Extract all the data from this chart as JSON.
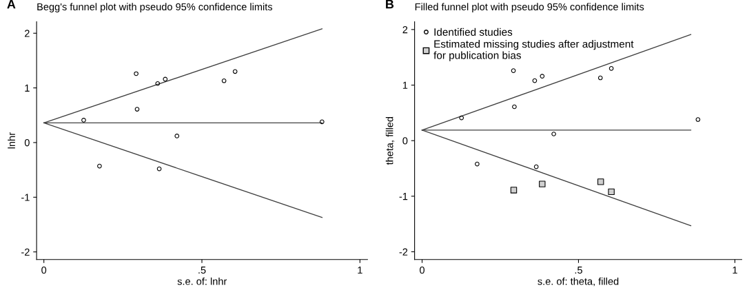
{
  "chart_data": [
    {
      "type": "scatter",
      "title": "Begg's funnel plot with pseudo 95% confidence limits",
      "xlabel": "s.e. of: lnhr",
      "ylabel": "lnhr",
      "annotations": [
        "A"
      ],
      "xlim": [
        -0.023,
        1.024
      ],
      "ylim": [
        -2.14,
        2.21
      ],
      "xticks": [
        0,
        {
          "value": 0.5,
          "label": ".5"
        },
        1
      ],
      "yticks": [
        -2,
        -1,
        0,
        1,
        2
      ],
      "grid": false,
      "legend": false,
      "series": [
        {
          "type": "line",
          "x": [
            0,
            0.88
          ],
          "values": [
            0.36,
            2.08
          ],
          "color": "#404040",
          "marker": "none"
        },
        {
          "type": "line",
          "x": [
            0,
            0.88
          ],
          "values": [
            0.36,
            0.36
          ],
          "color": "#404040",
          "marker": "none"
        },
        {
          "type": "line",
          "x": [
            0,
            0.88
          ],
          "values": [
            0.36,
            -1.37
          ],
          "color": "#404040",
          "marker": "none"
        },
        {
          "x": [
            0.126,
            0.176,
            0.292,
            0.295,
            0.36,
            0.365,
            0.384,
            0.421,
            0.57,
            0.605,
            0.88
          ],
          "values": [
            0.41,
            -0.43,
            1.26,
            0.61,
            1.08,
            -0.48,
            1.16,
            0.12,
            1.13,
            1.3,
            0.38
          ],
          "color": "#000000",
          "marker": "circle"
        }
      ]
    },
    {
      "type": "scatter",
      "title": "Filled funnel plot with pseudo 95% confidence limits",
      "xlabel": "s.e. of: theta, filled",
      "ylabel": "theta, filled",
      "annotations": [
        "B"
      ],
      "xlim": [
        -0.024,
        1.022
      ],
      "ylim": [
        -2.14,
        2.14
      ],
      "xticks": [
        0,
        {
          "value": 0.5,
          "label": ".5"
        },
        1
      ],
      "yticks": [
        -2,
        -1,
        0,
        1,
        2
      ],
      "grid": false,
      "legend": "top left",
      "series": [
        {
          "type": "line",
          "x": [
            0,
            0.859
          ],
          "values": [
            0.19,
            1.91
          ],
          "color": "#404040",
          "marker": "none"
        },
        {
          "type": "line",
          "x": [
            0,
            0.859
          ],
          "values": [
            0.19,
            0.19
          ],
          "color": "#404040",
          "marker": "none"
        },
        {
          "type": "line",
          "x": [
            0,
            0.859
          ],
          "values": [
            0.19,
            -1.53
          ],
          "color": "#404040",
          "marker": "none"
        },
        {
          "name": "Identified studies",
          "x": [
            0.126,
            0.176,
            0.292,
            0.295,
            0.36,
            0.365,
            0.384,
            0.421,
            0.57,
            0.605,
            0.882
          ],
          "values": [
            0.41,
            -0.42,
            1.26,
            0.61,
            1.08,
            -0.47,
            1.16,
            0.12,
            1.13,
            1.3,
            0.38
          ],
          "color": "#000000",
          "marker": "circle"
        },
        {
          "name": "Estimated missing studies after adjustment\nfor publication bias",
          "x": [
            0.293,
            0.384,
            0.571,
            0.605
          ],
          "values": [
            -0.89,
            -0.78,
            -0.74,
            -0.92
          ],
          "color": "#000000",
          "marker": "square"
        }
      ]
    }
  ]
}
